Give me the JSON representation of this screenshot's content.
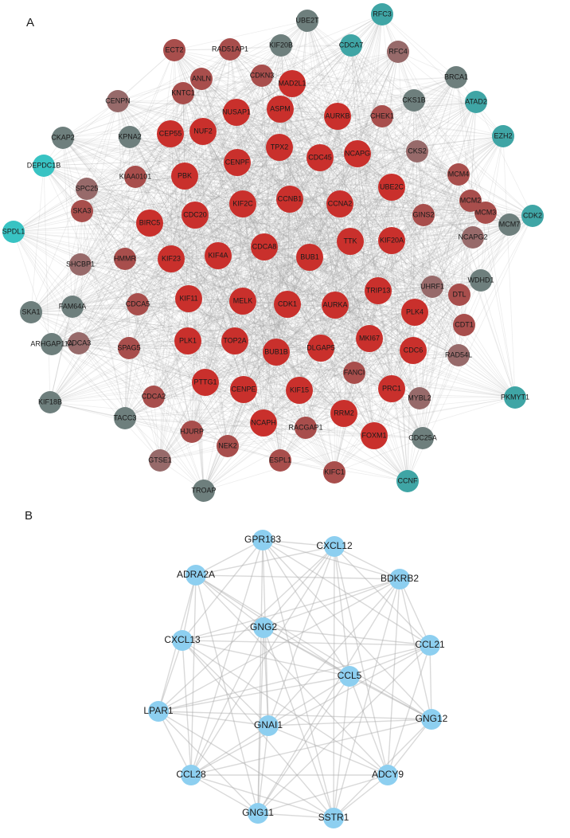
{
  "panels": [
    {
      "label": "A",
      "nodes": [
        "MAD2L1",
        "ASPM",
        "NUSAP1",
        "AURKB",
        "CHEK1",
        "CDKN3",
        "CEP55",
        "NUF2",
        "TPX2",
        "CDC45",
        "NCAPG",
        "CENPF",
        "PBK",
        "KIAA0101",
        "CCNB1",
        "CCNA2",
        "UBE2C",
        "KIF2C",
        "CDC20",
        "BIRC5",
        "GINS2",
        "TTK",
        "KIF20A",
        "CDCA8",
        "BUB1",
        "KIF4A",
        "KIF23",
        "HMMR",
        "TRIP13",
        "UHRF1",
        "CDK1",
        "AURKA",
        "MELK",
        "KIF11",
        "CDCA5",
        "DTL",
        "PLK4",
        "CDT1",
        "MKI67",
        "DLGAP5",
        "BUB1B",
        "TOP2A",
        "PLK1",
        "SPAG5",
        "CDC6",
        "FANCI",
        "PRC1",
        "KIF15",
        "CENPE",
        "PTTG1",
        "RAD54L",
        "CDCA2",
        "NCAPH",
        "RACGAP1",
        "RRM2",
        "FOXM1",
        "HJURP",
        "NEK2",
        "ESPL1",
        "KIFC1",
        "GTSE1",
        "MYBL2",
        "CCNF",
        "TROAP",
        "ECT2",
        "RAD51AP1",
        "KNTC1",
        "ANLN",
        "CENPN",
        "RFC4",
        "CKS2",
        "MCM4",
        "MCM3",
        "MCM2",
        "NCAPG2",
        "SPC25",
        "SKA3",
        "SHCBP1",
        "CDCA3",
        "KPNA2",
        "UBE2T",
        "RFC3",
        "KIF20B",
        "CDCA7",
        "BRCA1",
        "CKS1B",
        "ATAD2",
        "EZH2",
        "CDK2",
        "MCM7",
        "WDHD1",
        "CKAP2",
        "DEPDC1B",
        "SPDL1",
        "SKA1",
        "FAM64A",
        "ARHGAP11A",
        "KIF18B",
        "TACC3",
        "PKMYT1",
        "CDC25A"
      ]
    },
    {
      "label": "B",
      "nodes": [
        "GPR183",
        "CXCL12",
        "ADRA2A",
        "BDKRB2",
        "GNG2",
        "CXCL13",
        "CCL21",
        "CCL5",
        "LPAR1",
        "GNG12",
        "GNAI1",
        "CCL28",
        "ADCY9",
        "GNG11",
        "SSTR1"
      ]
    }
  ]
}
